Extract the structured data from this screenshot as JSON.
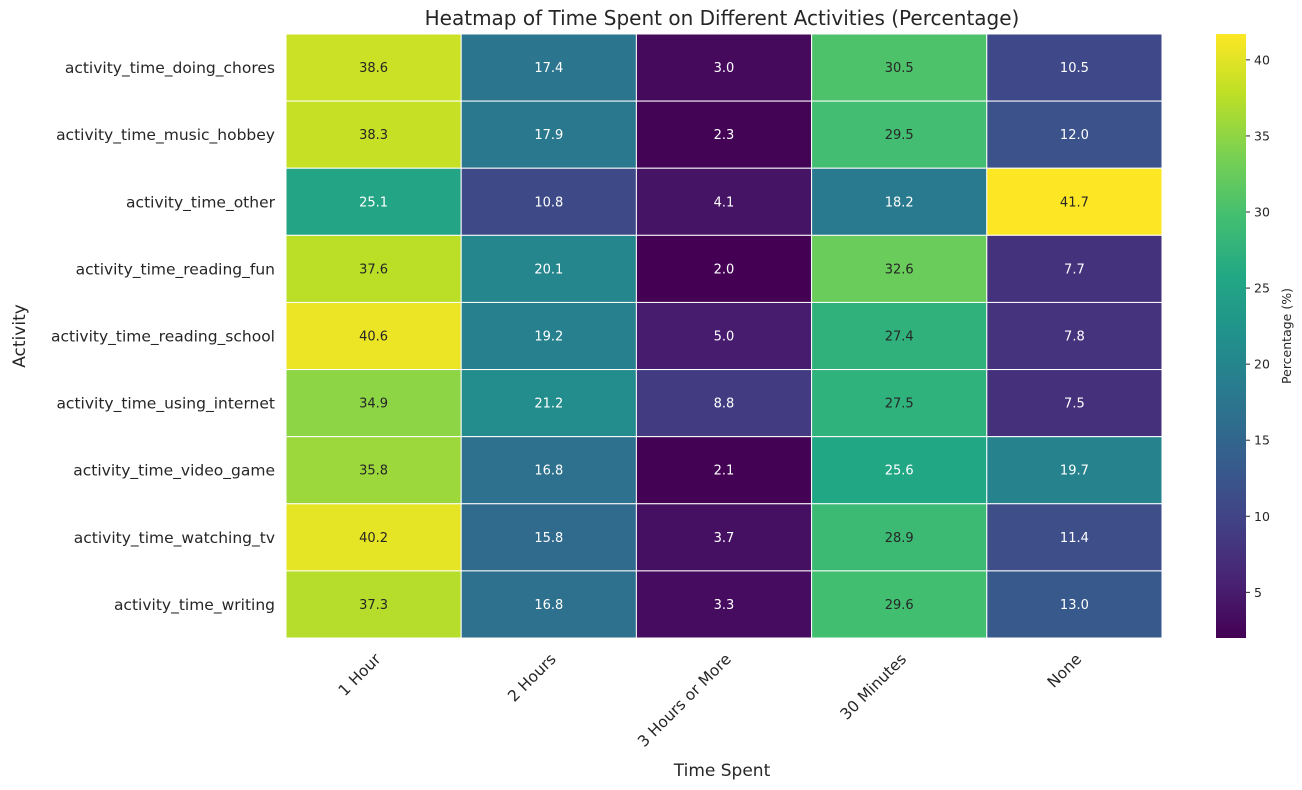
{
  "chart_data": {
    "type": "heatmap",
    "title": "Heatmap of Time Spent on Different Activities (Percentage)",
    "xlabel": "Time Spent",
    "ylabel": "Activity",
    "colormap": "viridis",
    "grid": false,
    "colorbar": {
      "label": "Percentage (%)",
      "range": [
        2.0,
        41.7
      ],
      "ticks": [
        5,
        10,
        15,
        20,
        25,
        30,
        35,
        40
      ],
      "tick_labels": [
        "5",
        "10",
        "15",
        "20",
        "25",
        "30",
        "35",
        "40"
      ]
    },
    "columns": [
      "1 Hour",
      "2 Hours",
      "3 Hours or More",
      "30 Minutes",
      "None"
    ],
    "rows": [
      "activity_time_doing_chores",
      "activity_time_music_hobbey",
      "activity_time_other",
      "activity_time_reading_fun",
      "activity_time_reading_school",
      "activity_time_using_internet",
      "activity_time_video_game",
      "activity_time_watching_tv",
      "activity_time_writing"
    ],
    "values": [
      [
        38.6,
        17.4,
        3.0,
        30.5,
        10.5
      ],
      [
        38.3,
        17.9,
        2.3,
        29.5,
        12.0
      ],
      [
        25.1,
        10.8,
        4.1,
        18.2,
        41.7
      ],
      [
        37.6,
        20.1,
        2.0,
        32.6,
        7.7
      ],
      [
        40.6,
        19.2,
        5.0,
        27.4,
        7.8
      ],
      [
        34.9,
        21.2,
        8.8,
        27.5,
        7.5
      ],
      [
        35.8,
        16.8,
        2.1,
        25.6,
        19.7
      ],
      [
        40.2,
        15.8,
        3.7,
        28.9,
        11.4
      ],
      [
        37.3,
        16.8,
        3.3,
        29.6,
        13.0
      ]
    ]
  }
}
